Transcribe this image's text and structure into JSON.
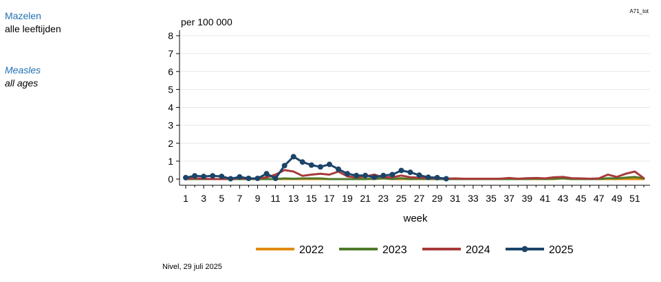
{
  "header": {
    "title_nl": "Mazelen",
    "subtitle_nl": "alle leeftijden",
    "title_en": "Measles",
    "subtitle_en": "all ages",
    "code": "A71_tot"
  },
  "footer": {
    "source": "Nivel, 29 juli 2025"
  },
  "chart_data": {
    "type": "line",
    "ylabel": "per 100 000",
    "xlabel": "week",
    "ylim": [
      0,
      8
    ],
    "xlim": [
      1,
      52
    ],
    "yticks": [
      0,
      1,
      2,
      3,
      4,
      5,
      6,
      7,
      8
    ],
    "xticks": [
      1,
      3,
      5,
      7,
      9,
      11,
      13,
      15,
      17,
      19,
      21,
      23,
      25,
      27,
      29,
      31,
      33,
      35,
      37,
      39,
      41,
      43,
      45,
      47,
      49,
      51
    ],
    "grid": true,
    "legend_position": "bottom",
    "series": [
      {
        "name": "2022",
        "color": "#e08a12",
        "markers": false,
        "x": [
          1,
          2,
          3,
          4,
          5,
          6,
          7,
          8,
          9,
          10,
          11,
          12,
          13,
          14,
          15,
          16,
          17,
          18,
          19,
          20,
          21,
          22,
          23,
          24,
          25,
          26,
          27,
          28,
          29,
          30,
          31,
          32,
          33,
          34,
          35,
          36,
          37,
          38,
          39,
          40,
          41,
          42,
          43,
          44,
          45,
          46,
          47,
          48,
          49,
          50,
          51,
          52
        ],
        "values": [
          0,
          0,
          0,
          0,
          0,
          0,
          0,
          0,
          0,
          0,
          0,
          0,
          0,
          0,
          0,
          0,
          0,
          0,
          0,
          0,
          0.02,
          0,
          0.04,
          0,
          0,
          0,
          0,
          0,
          0,
          0,
          0,
          0,
          0,
          0,
          0,
          0,
          0.02,
          0,
          0,
          0,
          0,
          0,
          0.04,
          0,
          0,
          0,
          0,
          0,
          0,
          0,
          0,
          0
        ]
      },
      {
        "name": "2023",
        "color": "#4f7a2a",
        "markers": false,
        "x": [
          1,
          2,
          3,
          4,
          5,
          6,
          7,
          8,
          9,
          10,
          11,
          12,
          13,
          14,
          15,
          16,
          17,
          18,
          19,
          20,
          21,
          22,
          23,
          24,
          25,
          26,
          27,
          28,
          29,
          30,
          31,
          32,
          33,
          34,
          35,
          36,
          37,
          38,
          39,
          40,
          41,
          42,
          43,
          44,
          45,
          46,
          47,
          48,
          49,
          50,
          51,
          52
        ],
        "values": [
          0,
          0,
          0,
          0,
          0,
          0,
          0,
          0,
          0,
          0,
          0,
          0.04,
          0.02,
          0.04,
          0.04,
          0.04,
          0,
          0,
          0,
          0,
          0,
          0.02,
          0.04,
          0,
          0.05,
          0,
          0.02,
          0,
          0,
          0,
          0,
          0,
          0,
          0,
          0,
          0,
          0,
          0,
          0,
          0.02,
          0,
          0.02,
          0.04,
          0,
          0,
          0,
          0,
          0.05,
          0.04,
          0.08,
          0.12,
          0.04
        ]
      },
      {
        "name": "2024",
        "color": "#a83a3a",
        "markers": false,
        "x": [
          1,
          2,
          3,
          4,
          5,
          6,
          7,
          8,
          9,
          10,
          11,
          12,
          13,
          14,
          15,
          16,
          17,
          18,
          19,
          20,
          21,
          22,
          23,
          24,
          25,
          26,
          27,
          28,
          29,
          30,
          31,
          32,
          33,
          34,
          35,
          36,
          37,
          38,
          39,
          40,
          41,
          42,
          43,
          44,
          45,
          46,
          47,
          48,
          49,
          50,
          51,
          52
        ],
        "values": [
          0.02,
          0.04,
          0.02,
          0,
          0,
          0.02,
          0.04,
          0.02,
          0.02,
          0.1,
          0.25,
          0.5,
          0.42,
          0.18,
          0.25,
          0.3,
          0.25,
          0.42,
          0.15,
          0.1,
          0.15,
          0.25,
          0.1,
          0.1,
          0.2,
          0.1,
          0.08,
          0.05,
          0.04,
          0.02,
          0.04,
          0.02,
          0.02,
          0.02,
          0.02,
          0.02,
          0.06,
          0.02,
          0.05,
          0.06,
          0.04,
          0.1,
          0.12,
          0.05,
          0.04,
          0.02,
          0.04,
          0.25,
          0.12,
          0.3,
          0.42,
          0.05
        ]
      },
      {
        "name": "2025",
        "color": "#1b4468",
        "markers": true,
        "x": [
          1,
          2,
          3,
          4,
          5,
          6,
          7,
          8,
          9,
          10,
          11,
          12,
          13,
          14,
          15,
          16,
          17,
          18,
          19,
          20,
          21,
          22,
          23,
          24,
          25,
          26,
          27,
          28,
          29,
          30
        ],
        "values": [
          0.08,
          0.18,
          0.15,
          0.18,
          0.15,
          0.02,
          0.12,
          0.04,
          0.04,
          0.3,
          0.04,
          0.75,
          1.25,
          0.95,
          0.78,
          0.68,
          0.82,
          0.55,
          0.3,
          0.2,
          0.2,
          0.1,
          0.2,
          0.25,
          0.48,
          0.38,
          0.22,
          0.1,
          0.08,
          0.02
        ]
      }
    ]
  }
}
